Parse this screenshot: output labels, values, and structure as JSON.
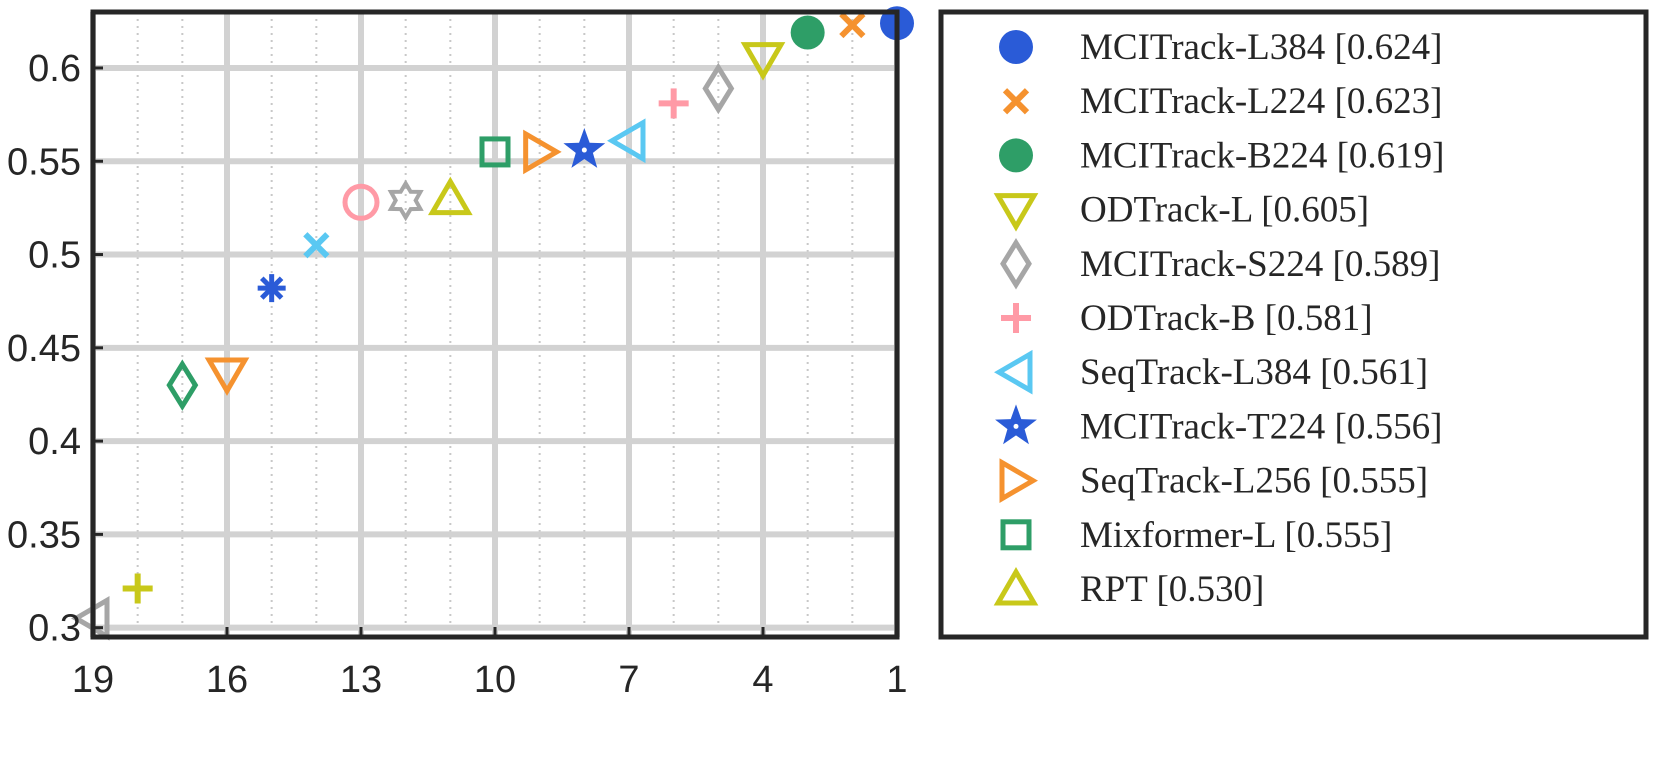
{
  "chart_data": {
    "type": "scatter",
    "title": "",
    "xlabel": "",
    "ylabel": "",
    "xlim": [
      1,
      19
    ],
    "x_reversed": true,
    "ylim": [
      0.295,
      0.63
    ],
    "xticks": [
      19,
      16,
      13,
      10,
      7,
      4,
      1
    ],
    "yticks": [
      0.3,
      0.35,
      0.4,
      0.45,
      0.5,
      0.55,
      0.6
    ],
    "ytick_labels": [
      "0.3",
      "0.35",
      "0.4",
      "0.45",
      "0.5",
      "0.55",
      "0.6"
    ],
    "grid": true,
    "legend_position": "outside-right",
    "legend_labels": [
      "MCITrack-L384 [0.624]",
      "MCITrack-L224 [0.623]",
      "MCITrack-B224 [0.619]",
      "ODTrack-L [0.605]",
      "MCITrack-S224 [0.589]",
      "ODTrack-B [0.581]",
      "SeqTrack-L384 [0.561]",
      "MCITrack-T224 [0.556]",
      "SeqTrack-L256 [0.555]",
      "Mixformer-L [0.555]",
      "RPT [0.530]"
    ],
    "series": [
      {
        "x": 1,
        "y": 0.624,
        "marker": "circle-filled",
        "color": "#2a5bd7",
        "legend_index": 0
      },
      {
        "x": 2,
        "y": 0.623,
        "marker": "x",
        "color": "#f5922f",
        "legend_index": 1
      },
      {
        "x": 3,
        "y": 0.619,
        "marker": "circle-filled",
        "color": "#2e9e67",
        "legend_index": 2
      },
      {
        "x": 4,
        "y": 0.605,
        "marker": "triangle-down",
        "color": "#c8c81a",
        "legend_index": 3
      },
      {
        "x": 5,
        "y": 0.589,
        "marker": "diamond",
        "color": "#a6a6a6",
        "legend_index": 4
      },
      {
        "x": 6,
        "y": 0.581,
        "marker": "plus",
        "color": "#ff9aa6",
        "legend_index": 5
      },
      {
        "x": 7,
        "y": 0.561,
        "marker": "triangle-left",
        "color": "#5ac8f2",
        "legend_index": 6
      },
      {
        "x": 8,
        "y": 0.556,
        "marker": "star-filled",
        "color": "#2a5bd7",
        "legend_index": 7
      },
      {
        "x": 9,
        "y": 0.555,
        "marker": "triangle-right",
        "color": "#f5922f",
        "legend_index": 8
      },
      {
        "x": 10,
        "y": 0.555,
        "marker": "square",
        "color": "#2e9e67",
        "legend_index": 9
      },
      {
        "x": 11,
        "y": 0.53,
        "marker": "triangle-up",
        "color": "#c8c81a",
        "legend_index": 10
      },
      {
        "x": 12,
        "y": 0.529,
        "marker": "hexagram",
        "color": "#a6a6a6"
      },
      {
        "x": 13,
        "y": 0.528,
        "marker": "circle",
        "color": "#ff9aa6"
      },
      {
        "x": 14,
        "y": 0.505,
        "marker": "x",
        "color": "#5ac8f2"
      },
      {
        "x": 15,
        "y": 0.482,
        "marker": "asterisk",
        "color": "#2a5bd7"
      },
      {
        "x": 16,
        "y": 0.436,
        "marker": "triangle-down",
        "color": "#f5922f"
      },
      {
        "x": 17,
        "y": 0.43,
        "marker": "diamond",
        "color": "#2e9e67"
      },
      {
        "x": 18,
        "y": 0.321,
        "marker": "plus",
        "color": "#c8c81a"
      },
      {
        "x": 19,
        "y": 0.305,
        "marker": "triangle-left",
        "color": "#a6a6a6"
      }
    ]
  }
}
